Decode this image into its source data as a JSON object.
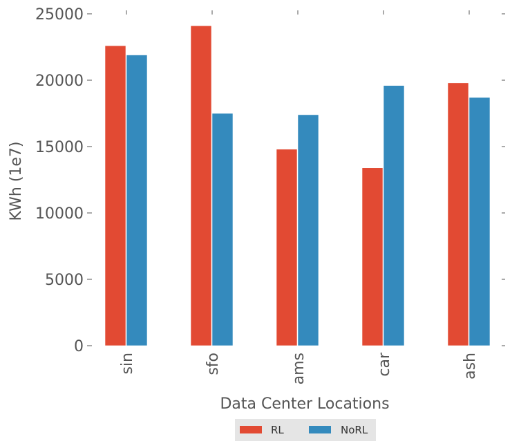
{
  "chart_data": {
    "type": "bar",
    "categories": [
      "sin",
      "sfo",
      "ams",
      "car",
      "ash"
    ],
    "series": [
      {
        "name": "RL",
        "color": "#E24A33",
        "values": [
          22600,
          24100,
          14800,
          13400,
          19800
        ]
      },
      {
        "name": "NoRL",
        "color": "#348ABD",
        "values": [
          21900,
          17500,
          17400,
          19600,
          18700
        ]
      }
    ],
    "xlabel": "Data Center Locations",
    "ylabel": "KWh (1e7)",
    "ylim": [
      0,
      25000
    ],
    "yticks": [
      "0",
      "5000",
      "10000",
      "15000",
      "20000",
      "25000"
    ],
    "grid": false,
    "legend": "bottom-center"
  }
}
